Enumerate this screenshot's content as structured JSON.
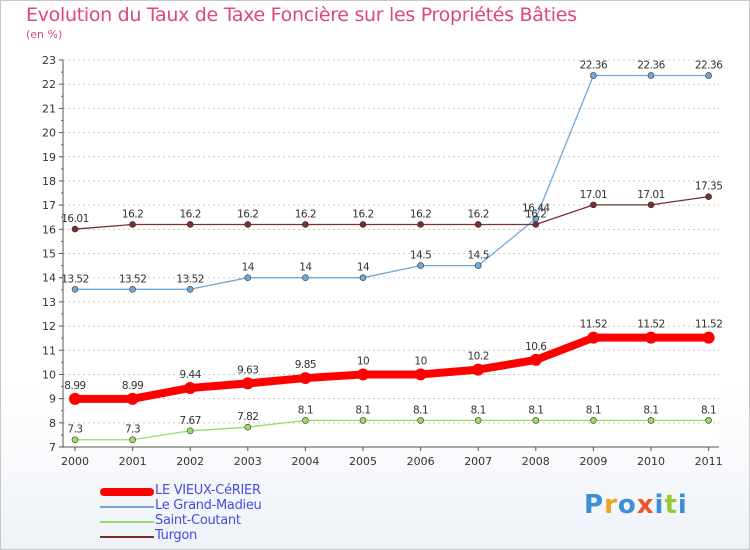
{
  "header": {
    "title": "Evolution du Taux de Taxe Foncière sur les Propriétés Bâties",
    "subtitle": "(en %)"
  },
  "logo": {
    "text": "Proxiti",
    "letters": [
      "P",
      "r",
      "o",
      "x",
      "i",
      "t",
      "i"
    ],
    "letter_colors": [
      "#3a8fd8",
      "#f0a020",
      "#3a8fd8",
      "#e8562a",
      "#3a8fd8",
      "#9bc83a",
      "#3a8fd8"
    ]
  },
  "chart_data": {
    "type": "line",
    "title": "Evolution du Taux de Taxe Foncière sur les Propriétés Bâties",
    "ylabel": "(en %)",
    "xlabel": "",
    "x": [
      "2000",
      "2001",
      "2002",
      "2003",
      "2004",
      "2005",
      "2006",
      "2007",
      "2008",
      "2009",
      "2010",
      "2011"
    ],
    "ylim": [
      7,
      23
    ],
    "yticks": [
      "7",
      "8",
      "9",
      "10",
      "11",
      "12",
      "13",
      "14",
      "15",
      "16",
      "17",
      "18",
      "19",
      "20",
      "21",
      "22",
      "23"
    ],
    "grid": "horizontal dashed",
    "legend_position": "bottom-left",
    "series": [
      {
        "name": "LE VIEUX-CéRIER",
        "color": "#ff0000",
        "values": [
          8.99,
          8.99,
          9.44,
          9.63,
          9.85,
          10,
          10,
          10.2,
          10.6,
          11.52,
          11.52,
          11.52
        ],
        "labels": [
          "8.99",
          "8.99",
          "9.44",
          "9.63",
          "9.85",
          "10",
          "10",
          "10.2",
          "10.6",
          "11.52",
          "11.52",
          "11.52"
        ]
      },
      {
        "name": "Le Grand-Madieu",
        "color": "#6fa8dc",
        "values": [
          13.52,
          13.52,
          13.52,
          14,
          14,
          14,
          14.5,
          14.5,
          16.44,
          22.36,
          22.36,
          22.36
        ],
        "labels": [
          "13.52",
          "13.52",
          "13.52",
          "14",
          "14",
          "14",
          "14.5",
          "14.5",
          "16.44",
          "22.36",
          "22.36",
          "22.36"
        ]
      },
      {
        "name": "Saint-Coutant",
        "color": "#99dd66",
        "values": [
          7.3,
          7.3,
          7.67,
          7.82,
          8.1,
          8.1,
          8.1,
          8.1,
          8.1,
          8.1,
          8.1,
          8.1
        ],
        "labels": [
          "7.3",
          "7.3",
          "7.67",
          "7.82",
          "8.1",
          "8.1",
          "8.1",
          "8.1",
          "8.1",
          "8.1",
          "8.1",
          "8.1"
        ]
      },
      {
        "name": "Turgon",
        "color": "#7a2e2e",
        "values": [
          16.01,
          16.2,
          16.2,
          16.2,
          16.2,
          16.2,
          16.2,
          16.2,
          16.2,
          17.01,
          17.01,
          17.35
        ],
        "labels": [
          "16.01",
          "16.2",
          "16.2",
          "16.2",
          "16.2",
          "16.2",
          "16.2",
          "16.2",
          "16.2",
          "17.01",
          "17.01",
          "17.35"
        ]
      }
    ]
  }
}
